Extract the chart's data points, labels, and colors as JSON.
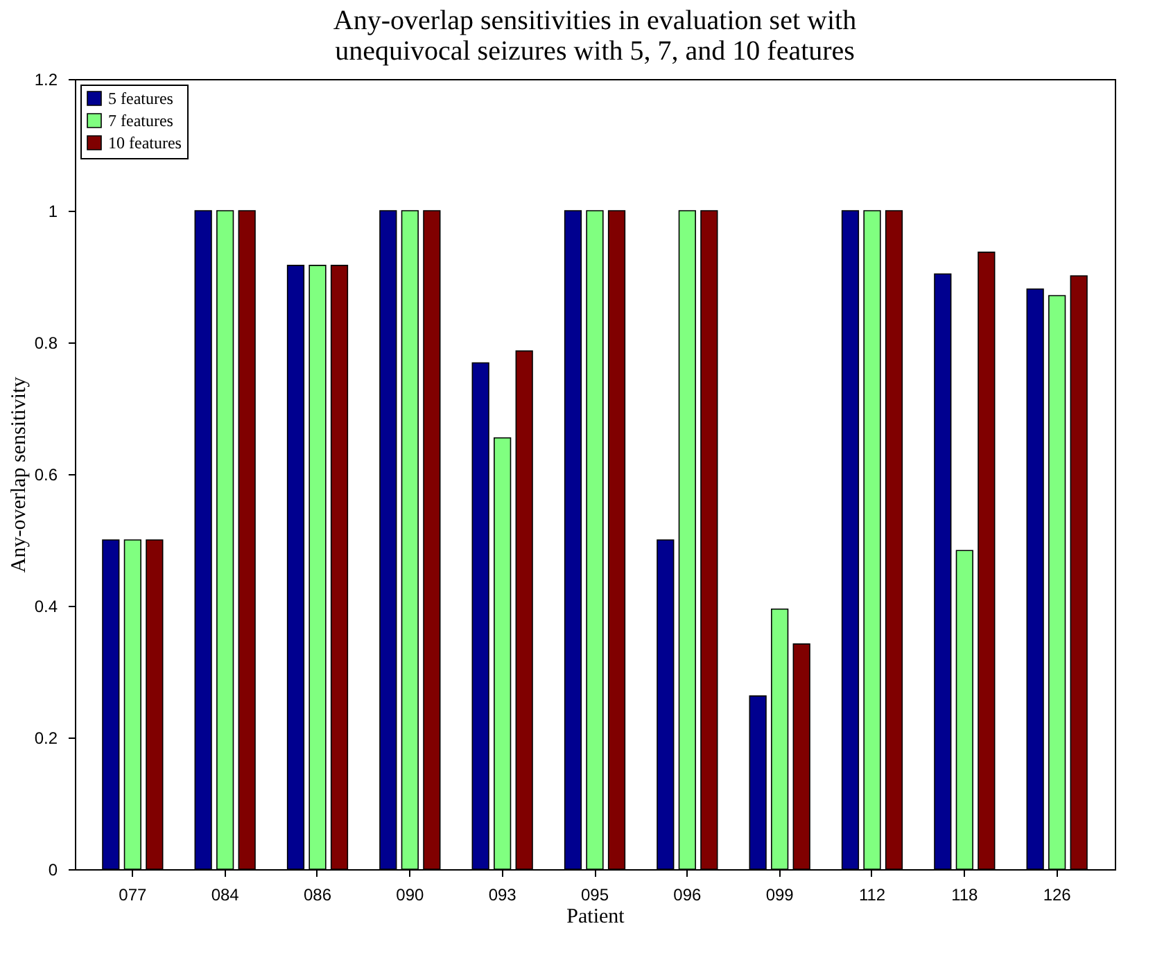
{
  "chart_data": {
    "type": "bar",
    "title": "Any-overlap sensitivities in evaluation set with\nunequivocal seizures with 5, 7, and 10 features",
    "xlabel": "Patient",
    "ylabel": "Any-overlap sensitivity",
    "categories": [
      "077",
      "084",
      "086",
      "090",
      "093",
      "095",
      "096",
      "099",
      "112",
      "118",
      "126"
    ],
    "series": [
      {
        "name": "5 features",
        "color": "#00008f",
        "values": [
          0.5,
          1,
          0.917,
          1,
          0.769,
          1,
          0.5,
          0.263,
          1,
          0.904,
          0.881
        ]
      },
      {
        "name": "7 features",
        "color": "#80ff80",
        "values": [
          0.5,
          1,
          0.917,
          1,
          0.655,
          1,
          1,
          0.395,
          1,
          0.484,
          0.871
        ]
      },
      {
        "name": "10 features",
        "color": "#800000",
        "values": [
          0.5,
          1,
          0.917,
          1,
          0.787,
          1,
          1,
          0.342,
          1,
          0.937,
          0.901
        ]
      }
    ],
    "ylim": [
      0,
      1.2
    ],
    "yticks": [
      0,
      0.2,
      0.4,
      0.6,
      0.8,
      1,
      1.2
    ],
    "grid": false,
    "legend": "top left"
  }
}
